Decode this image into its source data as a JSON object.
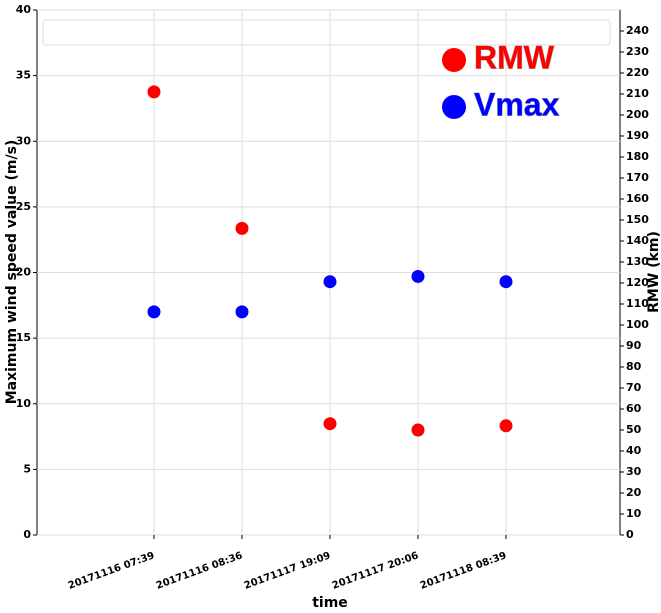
{
  "chart_data": {
    "type": "scatter",
    "x_label": "time",
    "y_label": "Maximum wind speed value (m/s)",
    "y2_label": "RMW (km)",
    "categories": [
      "20171116 07:39",
      "20171116 08:36",
      "20171117 19:09",
      "20171117 20:06",
      "20171118 08:39"
    ],
    "series": [
      {
        "name": "RMW",
        "color": "#ff0000",
        "axis": "y2",
        "values": [
          211,
          146,
          53,
          50,
          52
        ]
      },
      {
        "name": "Vmax",
        "color": "#0000ff",
        "values": [
          17,
          17,
          19.3,
          19.7,
          19.3
        ]
      }
    ],
    "ylim": [
      0,
      40
    ],
    "yticks": [
      0,
      5,
      10,
      15,
      20,
      25,
      30,
      35,
      40
    ],
    "y2lim": [
      0,
      250
    ],
    "y2ticks": [
      0,
      10,
      20,
      30,
      40,
      50,
      60,
      70,
      80,
      90,
      100,
      110,
      120,
      130,
      140,
      150,
      160,
      170,
      180,
      190,
      200,
      210,
      220,
      230,
      240
    ],
    "grid": true,
    "legend": "upper right"
  }
}
